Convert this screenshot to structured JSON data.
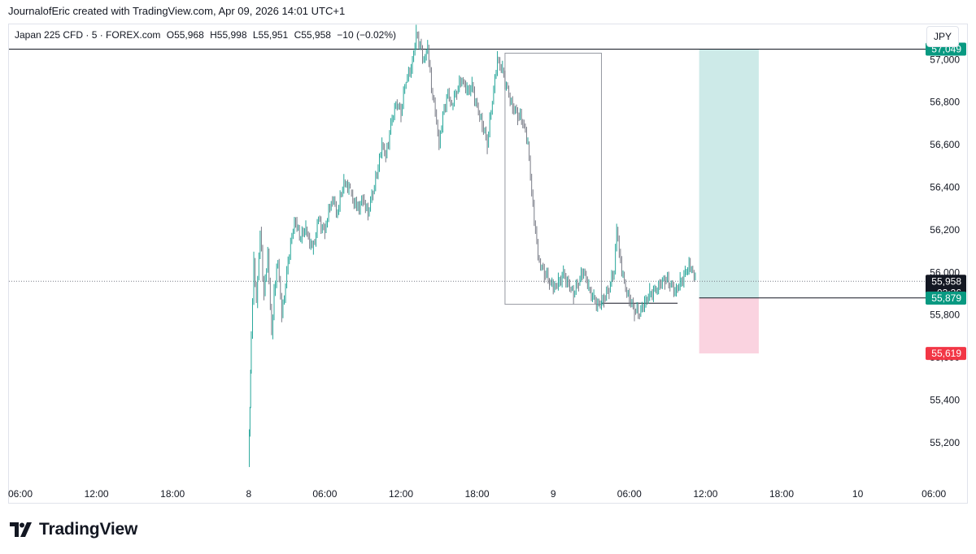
{
  "header": {
    "caption": "JournalofEric created with TradingView.com, Apr 09, 2026 14:01 UTC+1"
  },
  "legend": {
    "symbol": "Japan 225 CFD · 5 · FOREX.com",
    "open": "O55,968",
    "high": "H55,998",
    "low": "L55,951",
    "close": "C55,958",
    "change": "−10 (−0.02%)"
  },
  "currency_button": "JPY",
  "brand": {
    "name": "TradingView"
  },
  "colors": {
    "up": "#26a69a",
    "down": "#787b86",
    "target_zone": "#b2dfdb",
    "stop_zone": "#f8bbd0",
    "target_label": "#089981",
    "stop_label": "#f23645",
    "price_label": "#131722",
    "last_price_label": "#363a45"
  },
  "chart_data": {
    "type": "line",
    "title": "",
    "y_axis": {
      "ticks": [
        55200,
        55400,
        55600,
        55800,
        56000,
        56200,
        56400,
        56600,
        56800,
        57000
      ],
      "tick_labels": [
        "55,200",
        "55,400",
        "55,600",
        "55,800",
        "56,000",
        "56,200",
        "56,400",
        "56,600",
        "56,800",
        "57,000"
      ]
    },
    "x_axis": {
      "tick_labels": [
        "06:00",
        "12:00",
        "18:00",
        "8",
        "06:00",
        "12:00",
        "18:00",
        "9",
        "06:00",
        "12:00",
        "18:00",
        "10",
        "06:00"
      ],
      "tick_hours": [
        6,
        12,
        18,
        24,
        30,
        36,
        42,
        48,
        54,
        60,
        66,
        72,
        78
      ]
    },
    "price_path": [
      [
        24.0,
        55100
      ],
      [
        24.1,
        55380
      ],
      [
        24.2,
        55700
      ],
      [
        24.4,
        56050
      ],
      [
        24.6,
        55850
      ],
      [
        24.9,
        56200
      ],
      [
        25.2,
        55900
      ],
      [
        25.5,
        56100
      ],
      [
        25.8,
        55700
      ],
      [
        26.0,
        55900
      ],
      [
        26.3,
        56050
      ],
      [
        26.6,
        55800
      ],
      [
        27.0,
        56000
      ],
      [
        27.3,
        56150
      ],
      [
        27.7,
        56250
      ],
      [
        28.0,
        56150
      ],
      [
        28.5,
        56200
      ],
      [
        29.0,
        56100
      ],
      [
        29.5,
        56250
      ],
      [
        30.0,
        56200
      ],
      [
        30.5,
        56350
      ],
      [
        31.0,
        56280
      ],
      [
        31.5,
        56420
      ],
      [
        32.0,
        56380
      ],
      [
        32.5,
        56300
      ],
      [
        33.0,
        56350
      ],
      [
        33.4,
        56280
      ],
      [
        33.8,
        56380
      ],
      [
        34.1,
        56450
      ],
      [
        34.5,
        56600
      ],
      [
        34.8,
        56550
      ],
      [
        35.2,
        56700
      ],
      [
        35.6,
        56800
      ],
      [
        36.0,
        56750
      ],
      [
        36.4,
        56900
      ],
      [
        36.8,
        56950
      ],
      [
        37.2,
        57120
      ],
      [
        37.5,
        57080
      ],
      [
        37.8,
        57000
      ],
      [
        38.1,
        57060
      ],
      [
        38.4,
        56850
      ],
      [
        38.7,
        56750
      ],
      [
        39.0,
        56600
      ],
      [
        39.3,
        56750
      ],
      [
        39.7,
        56850
      ],
      [
        40.0,
        56780
      ],
      [
        40.4,
        56850
      ],
      [
        40.8,
        56900
      ],
      [
        41.2,
        56850
      ],
      [
        41.6,
        56880
      ],
      [
        42.0,
        56780
      ],
      [
        42.4,
        56700
      ],
      [
        42.8,
        56600
      ],
      [
        43.2,
        56800
      ],
      [
        43.6,
        57000
      ],
      [
        44.0,
        56950
      ],
      [
        44.4,
        56860
      ],
      [
        44.8,
        56780
      ],
      [
        45.2,
        56740
      ],
      [
        45.6,
        56700
      ],
      [
        46.0,
        56600
      ],
      [
        46.3,
        56380
      ],
      [
        46.6,
        56200
      ],
      [
        46.9,
        56050
      ],
      [
        47.3,
        56000
      ],
      [
        47.7,
        55950
      ],
      [
        48.0,
        55920
      ],
      [
        48.4,
        55950
      ],
      [
        48.8,
        56000
      ],
      [
        49.2,
        55950
      ],
      [
        49.6,
        55900
      ],
      [
        50.0,
        55950
      ],
      [
        50.4,
        56000
      ],
      [
        50.8,
        55920
      ],
      [
        51.2,
        55880
      ],
      [
        51.6,
        55850
      ],
      [
        52.0,
        55880
      ],
      [
        52.4,
        55920
      ],
      [
        52.8,
        56000
      ],
      [
        53.0,
        56200
      ],
      [
        53.2,
        56100
      ],
      [
        53.6,
        55950
      ],
      [
        54.0,
        55880
      ],
      [
        54.4,
        55820
      ],
      [
        54.8,
        55800
      ],
      [
        55.2,
        55850
      ],
      [
        55.6,
        55900
      ],
      [
        56.0,
        55920
      ],
      [
        56.4,
        55950
      ],
      [
        56.8,
        55970
      ],
      [
        57.2,
        55940
      ],
      [
        57.6,
        55900
      ],
      [
        58.0,
        55950
      ],
      [
        58.4,
        56000
      ],
      [
        58.7,
        56050
      ],
      [
        59.0,
        56000
      ],
      [
        59.2,
        55958
      ]
    ],
    "price_lines": [
      {
        "label": "57,049",
        "value": 57049,
        "color": "#089981"
      },
      {
        "label": "55,958",
        "value": 55958,
        "color": "#131722",
        "countdown": "03:36"
      },
      {
        "label": "55,880",
        "value": 55880,
        "color": "#363a45"
      },
      {
        "label": "55,879",
        "value": 55879,
        "color": "#089981"
      },
      {
        "label": "55,619",
        "value": 55619,
        "color": "#f23645"
      }
    ],
    "drawings": {
      "horizontal_line": {
        "value": 57049
      },
      "rectangle": {
        "x_from": 44.2,
        "x_to": 51.8,
        "y_from": 55850,
        "y_to": 57030
      },
      "level_line_1": {
        "x_from": 51.8,
        "x_to": 57.8,
        "value": 55855
      },
      "long_position": {
        "x_from": 59.5,
        "x_to": 64.2,
        "entry": 55880,
        "target": 57049,
        "stop": 55619
      }
    }
  }
}
